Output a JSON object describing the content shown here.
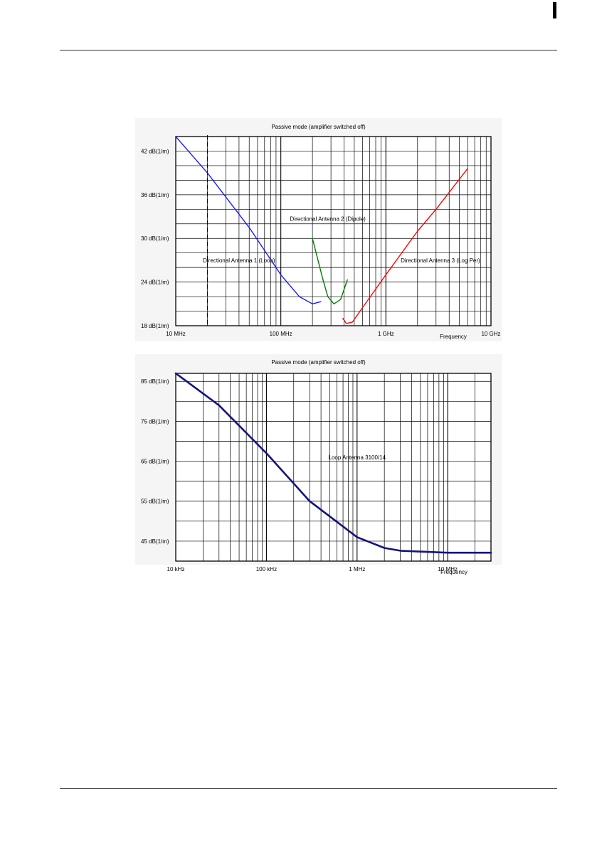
{
  "chart_data": [
    {
      "type": "line",
      "title": "Passive mode (amplifier switched off)",
      "xlabel": "Frequency",
      "ylabel": "",
      "x_scale": "log",
      "x_unit": "Hz",
      "xlim": [
        10000000,
        10000000000
      ],
      "ylim": [
        18,
        44
      ],
      "grid": true,
      "x_tick_labels": [
        {
          "value": 10000000,
          "label": "10 MHz"
        },
        {
          "value": 100000000,
          "label": "100 MHz"
        },
        {
          "value": 1000000000,
          "label": "1 GHz"
        },
        {
          "value": 10000000000,
          "label": "10 GHz"
        }
      ],
      "y_tick_labels": [
        {
          "value": 18,
          "label": "18 dB(1/m)"
        },
        {
          "value": 24,
          "label": "24 dB(1/m)"
        },
        {
          "value": 30,
          "label": "30 dB(1/m)"
        },
        {
          "value": 36,
          "label": "36 dB(1/m)"
        },
        {
          "value": 42,
          "label": "42 dB(1/m)"
        }
      ],
      "y_gridlines": [
        18,
        20,
        22,
        24,
        26,
        28,
        30,
        32,
        34,
        36,
        38,
        40,
        42,
        44
      ],
      "reference_line": {
        "x": 20000000,
        "style": "dashed"
      },
      "series": [
        {
          "name": "Directional Antenna 1 (Loop)",
          "color": "#1a1aff",
          "x": [
            10000000,
            20000000,
            50000000,
            100000000,
            150000000,
            200000000,
            240000000
          ],
          "y": [
            44,
            39,
            31.5,
            25,
            22,
            21,
            21.3
          ]
        },
        {
          "name": "Directional Antenna 2 (Dipole)",
          "color": "#008000",
          "x": [
            200000000,
            250000000,
            280000000,
            320000000,
            370000000,
            430000000
          ],
          "y": [
            30,
            24.5,
            22,
            21,
            21.6,
            24.3
          ]
        },
        {
          "name": "Directional Antenna 3 (Log Per)",
          "color": "#ff0000",
          "x": [
            390000000,
            420000000,
            480000000,
            600000000,
            1000000000,
            2000000000,
            3000000000,
            6000000000
          ],
          "y": [
            19,
            18.3,
            18.5,
            20.5,
            25,
            31,
            34,
            39.6
          ]
        }
      ],
      "annotations": [
        {
          "text": "Directional Antenna 1 (Loop)",
          "x": 40000000,
          "y": 27
        },
        {
          "text": "Directional Antenna 2 (Dipole)",
          "x": 280000000,
          "y": 32.7
        },
        {
          "text": "Directional Antenna 3 (Log Per)",
          "x": 3300000000,
          "y": 27
        }
      ]
    },
    {
      "type": "line",
      "title": "Passive mode (amplifier switched off)",
      "xlabel": "Frequency",
      "ylabel": "",
      "x_scale": "log",
      "x_unit": "Hz",
      "xlim": [
        10000,
        30000000
      ],
      "ylim": [
        40,
        87
      ],
      "grid": true,
      "x_tick_labels": [
        {
          "value": 10000,
          "label": "10 kHz"
        },
        {
          "value": 100000,
          "label": "100 kHz"
        },
        {
          "value": 1000000,
          "label": "1 MHz"
        },
        {
          "value": 10000000,
          "label": "10 MHz"
        }
      ],
      "y_tick_labels": [
        {
          "value": 45,
          "label": "45 dB(1/m)"
        },
        {
          "value": 55,
          "label": "55 dB(1/m)"
        },
        {
          "value": 65,
          "label": "65 dB(1/m)"
        },
        {
          "value": 75,
          "label": "75 dB(1/m)"
        },
        {
          "value": 85,
          "label": "85 dB(1/m)"
        }
      ],
      "y_gridlines": [
        40,
        45,
        50,
        55,
        60,
        65,
        70,
        75,
        80,
        85
      ],
      "series": [
        {
          "name": "Loop Antenna 3100/14",
          "color": "#14147a",
          "x": [
            10000,
            30000,
            100000,
            300000,
            1000000,
            2000000,
            3000000,
            10000000,
            30000000
          ],
          "y": [
            87,
            79,
            67,
            55,
            46,
            43.3,
            42.6,
            42.1,
            42.1
          ]
        }
      ],
      "annotations": [
        {
          "text": "Loop Antenna 3100/14",
          "x": 1000000,
          "y": 66
        }
      ]
    }
  ]
}
